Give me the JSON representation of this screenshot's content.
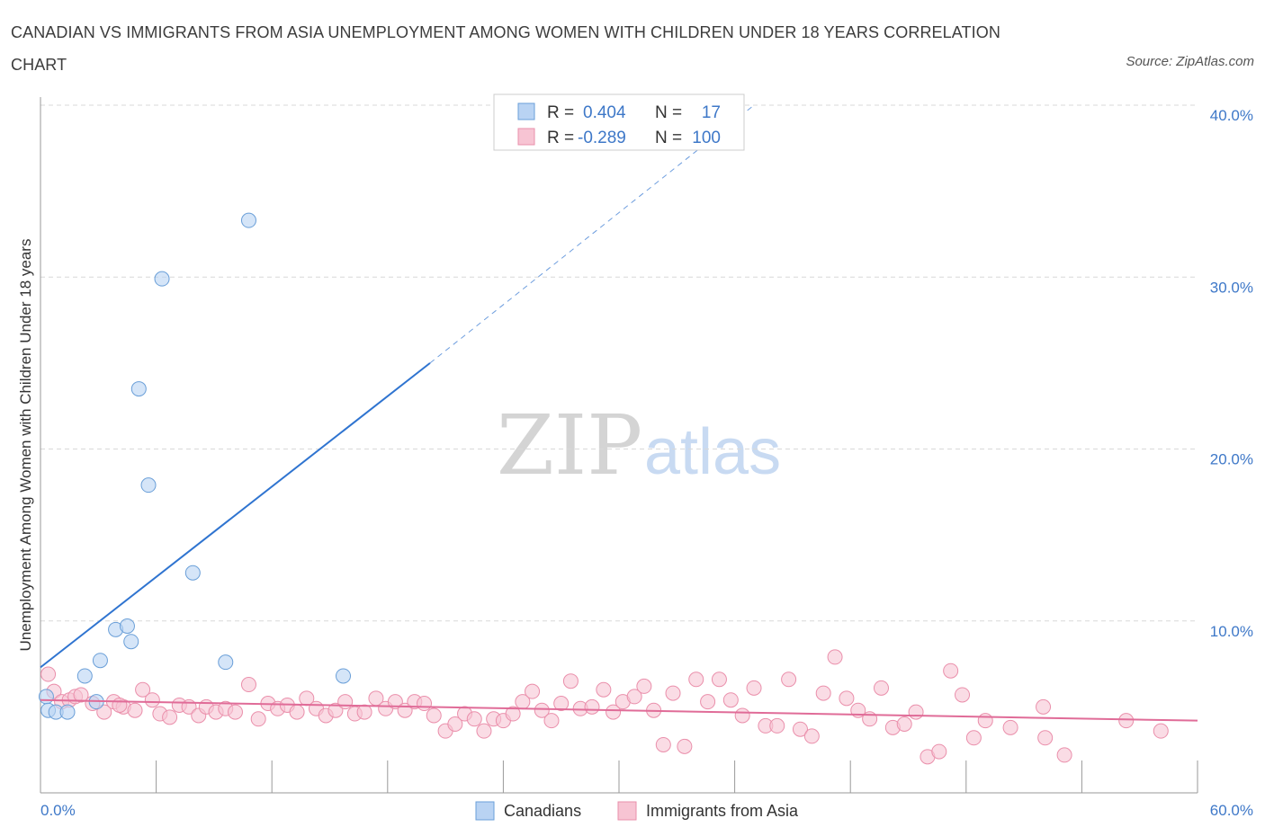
{
  "title": "CANADIAN VS IMMIGRANTS FROM ASIA UNEMPLOYMENT AMONG WOMEN WITH CHILDREN UNDER 18 YEARS CORRELATION CHART",
  "source": "Source: ZipAtlas.com",
  "watermark": {
    "zip": "ZIP",
    "atlas": "atlas"
  },
  "legend": {
    "rows": [
      {
        "r_label": "R =",
        "r_value": "0.404",
        "n_label": "N =",
        "n_value": "17"
      },
      {
        "r_label": "R =",
        "r_value": "-0.289",
        "n_label": "N =",
        "n_value": "100"
      }
    ]
  },
  "bottom_legend": [
    "Canadians",
    "Immigrants from Asia"
  ],
  "colors": {
    "canadians_fill": "#b9d3f3",
    "canadians_stroke": "#6a9fd8",
    "canadians_line": "#2f74d0",
    "asia_fill": "#f7c4d3",
    "asia_stroke": "#ea8fab",
    "asia_line": "#e06c98",
    "grid": "#d8d8d8",
    "axis_text": "#3e78c8"
  },
  "chart_data": {
    "type": "scatter",
    "title": "CANADIAN VS IMMIGRANTS FROM ASIA UNEMPLOYMENT AMONG WOMEN WITH CHILDREN UNDER 18 YEARS CORRELATION CHART",
    "xlabel": "",
    "ylabel": "Unemployment Among Women with Children Under 18 years",
    "xlim": [
      0,
      60
    ],
    "ylim": [
      0,
      40
    ],
    "x_tick_labels": [
      "0.0%",
      "60.0%"
    ],
    "y_ticks": [
      10,
      20,
      30,
      40
    ],
    "y_tick_labels": [
      "10.0%",
      "20.0%",
      "30.0%",
      "40.0%"
    ],
    "grid": true,
    "series": [
      {
        "name": "Canadians",
        "r": 0.404,
        "n": 17,
        "points": [
          [
            0.3,
            5.6
          ],
          [
            0.4,
            4.8
          ],
          [
            0.8,
            4.7
          ],
          [
            1.4,
            4.7
          ],
          [
            2.3,
            6.8
          ],
          [
            3.1,
            7.7
          ],
          [
            3.9,
            9.5
          ],
          [
            4.5,
            9.7
          ],
          [
            4.7,
            8.8
          ],
          [
            5.1,
            23.5
          ],
          [
            5.6,
            17.9
          ],
          [
            6.3,
            29.9
          ],
          [
            7.9,
            12.8
          ],
          [
            9.6,
            7.6
          ],
          [
            10.8,
            33.3
          ],
          [
            15.7,
            6.8
          ],
          [
            2.9,
            5.3
          ]
        ],
        "trend": {
          "x0": 0,
          "y0": 7.3,
          "x1": 20.2,
          "y1": 25.0,
          "dash_to_x": 37,
          "dash_to_y": 40
        }
      },
      {
        "name": "Immigrants from Asia",
        "r": -0.289,
        "n": 100,
        "points": [
          [
            0.4,
            6.9
          ],
          [
            0.7,
            5.9
          ],
          [
            1.1,
            5.3
          ],
          [
            1.5,
            5.4
          ],
          [
            1.8,
            5.6
          ],
          [
            2.1,
            5.7
          ],
          [
            2.7,
            5.2
          ],
          [
            3.3,
            4.7
          ],
          [
            3.8,
            5.3
          ],
          [
            4.3,
            5.0
          ],
          [
            4.9,
            4.8
          ],
          [
            5.3,
            6.0
          ],
          [
            5.8,
            5.4
          ],
          [
            6.2,
            4.6
          ],
          [
            6.7,
            4.4
          ],
          [
            7.2,
            5.1
          ],
          [
            7.7,
            5.0
          ],
          [
            8.2,
            4.5
          ],
          [
            8.6,
            5.0
          ],
          [
            9.1,
            4.7
          ],
          [
            9.6,
            4.9
          ],
          [
            10.1,
            4.7
          ],
          [
            10.8,
            6.3
          ],
          [
            11.3,
            4.3
          ],
          [
            11.8,
            5.2
          ],
          [
            12.3,
            4.9
          ],
          [
            12.8,
            5.1
          ],
          [
            13.3,
            4.7
          ],
          [
            13.8,
            5.5
          ],
          [
            14.3,
            4.9
          ],
          [
            14.8,
            4.5
          ],
          [
            15.3,
            4.8
          ],
          [
            15.8,
            5.3
          ],
          [
            16.3,
            4.6
          ],
          [
            16.8,
            4.7
          ],
          [
            17.4,
            5.5
          ],
          [
            17.9,
            4.9
          ],
          [
            18.4,
            5.3
          ],
          [
            18.9,
            4.8
          ],
          [
            19.4,
            5.3
          ],
          [
            19.9,
            5.2
          ],
          [
            20.4,
            4.5
          ],
          [
            21.0,
            3.6
          ],
          [
            21.5,
            4.0
          ],
          [
            22.0,
            4.6
          ],
          [
            22.5,
            4.3
          ],
          [
            23.0,
            3.6
          ],
          [
            23.5,
            4.3
          ],
          [
            24.0,
            4.2
          ],
          [
            24.5,
            4.6
          ],
          [
            25.0,
            5.3
          ],
          [
            25.5,
            5.9
          ],
          [
            26.0,
            4.8
          ],
          [
            26.5,
            4.2
          ],
          [
            27.0,
            5.2
          ],
          [
            27.5,
            6.5
          ],
          [
            28.0,
            4.9
          ],
          [
            28.6,
            5.0
          ],
          [
            29.2,
            6.0
          ],
          [
            29.7,
            4.7
          ],
          [
            30.2,
            5.3
          ],
          [
            30.8,
            5.6
          ],
          [
            31.3,
            6.2
          ],
          [
            31.8,
            4.8
          ],
          [
            32.3,
            2.8
          ],
          [
            32.8,
            5.8
          ],
          [
            33.4,
            2.7
          ],
          [
            34.0,
            6.6
          ],
          [
            34.6,
            5.3
          ],
          [
            35.2,
            6.6
          ],
          [
            35.8,
            5.4
          ],
          [
            36.4,
            4.5
          ],
          [
            37.0,
            6.1
          ],
          [
            37.6,
            3.9
          ],
          [
            38.2,
            3.9
          ],
          [
            38.8,
            6.6
          ],
          [
            39.4,
            3.7
          ],
          [
            40.0,
            3.3
          ],
          [
            40.6,
            5.8
          ],
          [
            41.2,
            7.9
          ],
          [
            41.8,
            5.5
          ],
          [
            42.4,
            4.8
          ],
          [
            43.0,
            4.3
          ],
          [
            43.6,
            6.1
          ],
          [
            44.2,
            3.8
          ],
          [
            44.8,
            4.0
          ],
          [
            45.4,
            4.7
          ],
          [
            46.0,
            2.1
          ],
          [
            46.6,
            2.4
          ],
          [
            47.2,
            7.1
          ],
          [
            47.8,
            5.7
          ],
          [
            48.4,
            3.2
          ],
          [
            49.0,
            4.2
          ],
          [
            50.3,
            3.8
          ],
          [
            52.0,
            5.0
          ],
          [
            52.1,
            3.2
          ],
          [
            53.1,
            2.2
          ],
          [
            56.3,
            4.2
          ],
          [
            58.1,
            3.6
          ],
          [
            4.1,
            5.1
          ]
        ],
        "trend": {
          "x0": 0,
          "y0": 5.4,
          "x1": 60,
          "y1": 4.2
        }
      }
    ]
  }
}
